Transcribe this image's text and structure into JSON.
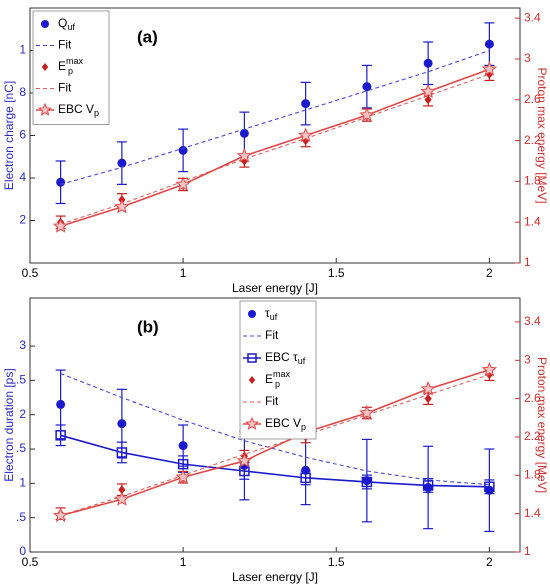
{
  "chart_data": [
    {
      "type": "line",
      "annotation": "(a)",
      "xlabel": "Laser energy [J]",
      "ylabel": "Electron charge [nC]",
      "y2label": "Proton max energy [MeV]",
      "x": [
        0.6,
        0.8,
        1.0,
        1.2,
        1.4,
        1.6,
        1.8,
        2.0
      ],
      "xlim": [
        0.5,
        2.1
      ],
      "xticks": [
        0.5,
        1,
        1.5,
        2
      ],
      "ylim": [
        0,
        12
      ],
      "yticks": [
        2,
        4,
        6,
        8,
        {
          "value": 10,
          "label": "1"
        }
      ],
      "y2lim": [
        1,
        3.5
      ],
      "y2ticks": [
        1,
        1.4,
        1.8,
        2.2,
        2.6,
        3,
        3.4
      ],
      "ycolor": "#2b2bc0",
      "y2color": "#d03030",
      "legend": "upper left",
      "series": [
        {
          "name": "Q",
          "sub": "uf",
          "color": "#1a1acc",
          "style": "marker",
          "marker": "circle",
          "values": [
            3.8,
            4.7,
            5.3,
            6.1,
            7.5,
            8.3,
            9.4,
            10.3
          ],
          "errors": [
            1.0,
            1.0,
            1.0,
            1.0,
            1.0,
            1.0,
            1.0,
            1.0
          ]
        },
        {
          "name": "Fit",
          "color": "#4a4ad8",
          "style": "dashed",
          "values": [
            3.7,
            4.5,
            5.4,
            6.3,
            7.2,
            8.1,
            9.0,
            10.0
          ]
        },
        {
          "name": "E",
          "sub": "p",
          "sup": "max",
          "color": "#c81e1e",
          "style": "marker",
          "marker": "diamond",
          "axis": "y2",
          "values": [
            1.4,
            1.62,
            1.77,
            2.0,
            2.2,
            2.45,
            2.6,
            2.85
          ],
          "errors": [
            0.06,
            0.06,
            0.06,
            0.06,
            0.06,
            0.06,
            0.06,
            0.06
          ]
        },
        {
          "name": "Fit",
          "color": "#e06060",
          "style": "dashed",
          "axis": "y2",
          "values": [
            1.38,
            1.58,
            1.8,
            2.02,
            2.22,
            2.43,
            2.64,
            2.85
          ]
        },
        {
          "name": "EBC V",
          "sub": "p",
          "color": "#e04848",
          "style": "solid-marker",
          "marker": "star",
          "axis": "y2",
          "values": [
            1.36,
            1.55,
            1.77,
            2.05,
            2.25,
            2.45,
            2.68,
            2.9
          ]
        }
      ]
    },
    {
      "type": "line",
      "annotation": "(b)",
      "xlabel": "Laser energy [J]",
      "ylabel": "Electron duration  [ps]",
      "y2label": "Proton max energy [MeV]",
      "x": [
        0.6,
        0.8,
        1.0,
        1.2,
        1.4,
        1.6,
        1.8,
        2.0
      ],
      "xlim": [
        0.5,
        2.1
      ],
      "xticks": [
        0.5,
        1,
        1.5,
        2
      ],
      "ylim": [
        0,
        3.7
      ],
      "yticks": [
        0,
        {
          "value": 0.5,
          "label": ".5"
        },
        1,
        {
          "value": 1.5,
          "label": ".5"
        },
        2,
        {
          "value": 2.5,
          "label": ".5"
        },
        3
      ],
      "y2lim": [
        1,
        3.65
      ],
      "y2ticks": [
        1,
        1.4,
        1.8,
        2.2,
        2.6,
        3,
        3.4
      ],
      "ycolor": "#2b2bc0",
      "y2color": "#d03030",
      "legend": "upper center",
      "series": [
        {
          "name": "τ",
          "sub": "uf",
          "color": "#1a1acc",
          "style": "marker",
          "marker": "circle",
          "values": [
            2.15,
            1.87,
            1.55,
            1.26,
            1.19,
            1.04,
            0.94,
            0.9
          ],
          "errors": [
            0.5,
            0.5,
            0.3,
            0.5,
            0.5,
            0.6,
            0.6,
            0.6
          ]
        },
        {
          "name": "Fit",
          "color": "#4a4ad8",
          "style": "dashed",
          "values": [
            2.6,
            2.25,
            1.92,
            1.62,
            1.38,
            1.18,
            1.05,
            0.98
          ]
        },
        {
          "name": "EBC τ",
          "sub": "uf",
          "color": "#1a1acc",
          "style": "solid-marker",
          "marker": "square",
          "values": [
            1.7,
            1.45,
            1.28,
            1.18,
            1.08,
            1.02,
            0.97,
            0.95
          ],
          "errors": [
            0.15,
            0.15,
            0.12,
            0.12,
            0.1,
            0.1,
            0.1,
            0.1
          ]
        },
        {
          "name": "E",
          "sub": "p",
          "sup": "max",
          "color": "#c81e1e",
          "style": "marker",
          "marker": "diamond",
          "axis": "y2",
          "values": [
            1.4,
            1.65,
            1.78,
            2.0,
            2.2,
            2.45,
            2.6,
            2.85
          ],
          "errors": [
            0.06,
            0.06,
            0.06,
            0.06,
            0.06,
            0.06,
            0.06,
            0.06
          ]
        },
        {
          "name": "Fit",
          "color": "#e06060",
          "style": "dashed",
          "axis": "y2",
          "values": [
            1.38,
            1.58,
            1.8,
            2.02,
            2.22,
            2.43,
            2.64,
            2.85
          ]
        },
        {
          "name": "EBC V",
          "sub": "p",
          "color": "#e04848",
          "style": "solid-marker",
          "marker": "star",
          "axis": "y2",
          "values": [
            1.38,
            1.55,
            1.78,
            1.95,
            2.25,
            2.45,
            2.7,
            2.9
          ]
        }
      ]
    }
  ]
}
